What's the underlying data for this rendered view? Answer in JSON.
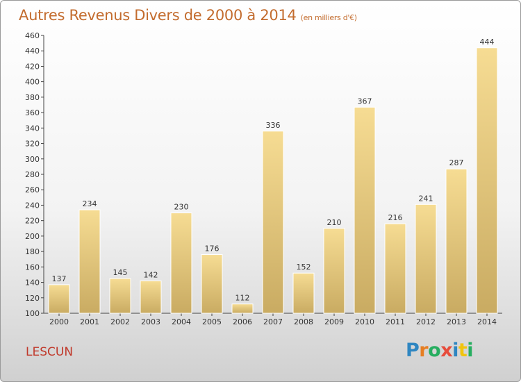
{
  "header": {
    "title": "Autres Revenus Divers de 2000 à 2014",
    "subtitle": "(en milliers d'€)"
  },
  "footer": {
    "location": "LESCUN",
    "logo": {
      "text": "Proxiti",
      "letters": [
        "P",
        "r",
        "o",
        "x",
        "i",
        "t",
        "i"
      ],
      "colors": [
        "#2e86c1",
        "#e67e22",
        "#27ae60",
        "#e74c3c",
        "#2e86c1",
        "#f1c40f",
        "#27ae60"
      ]
    }
  },
  "chart_data": {
    "type": "bar",
    "title": "Autres Revenus Divers de 2000 à 2014",
    "subtitle": "(en milliers d'€)",
    "categories": [
      "2000",
      "2001",
      "2002",
      "2003",
      "2004",
      "2005",
      "2006",
      "2007",
      "2008",
      "2009",
      "2010",
      "2011",
      "2012",
      "2013",
      "2014"
    ],
    "values": [
      137,
      234,
      145,
      142,
      230,
      176,
      112,
      336,
      152,
      210,
      367,
      216,
      241,
      287,
      444
    ],
    "ylim": [
      100,
      460
    ],
    "ytick_step": 20,
    "grid": false,
    "xlabel": "",
    "ylabel": "",
    "colors": {
      "bar_top": "#f6dc93",
      "bar_bottom": "#c9ab62",
      "axis": "#444444",
      "label": "#333333"
    }
  }
}
